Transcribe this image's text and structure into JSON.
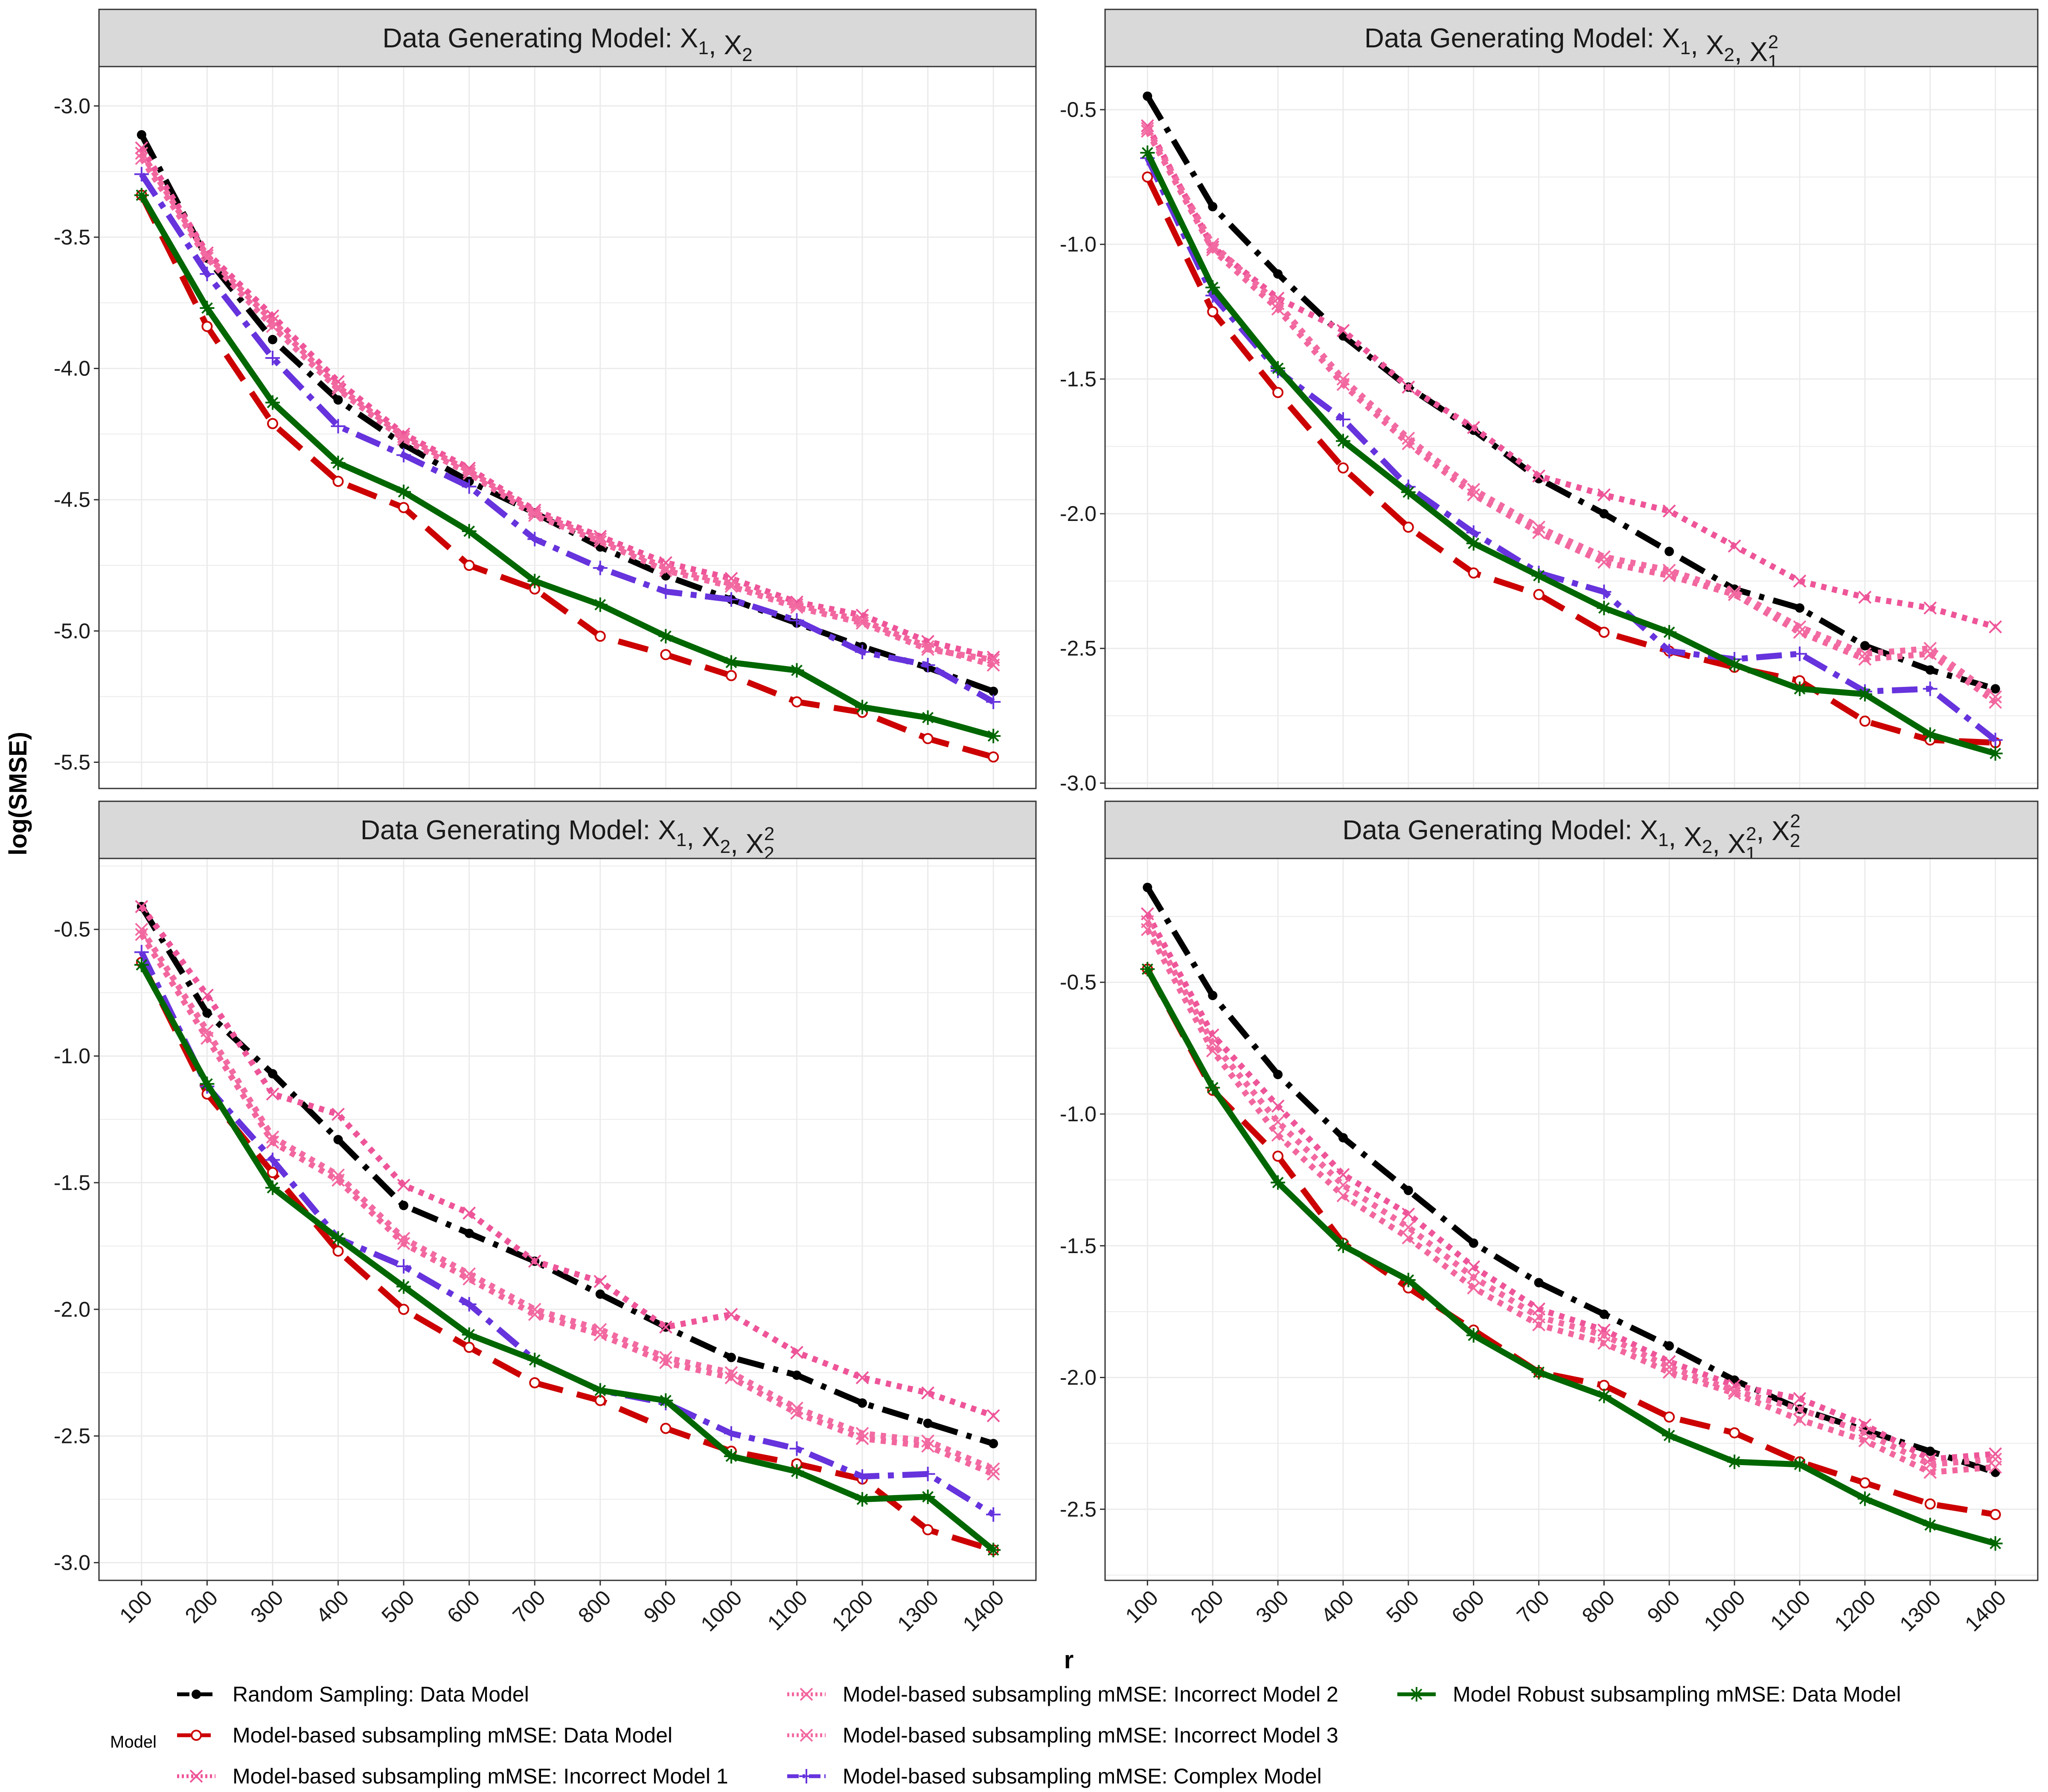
{
  "ylabel": "log(SMSE)",
  "xlabel": "r",
  "legend": {
    "title": "Model",
    "position": "bottom"
  },
  "chart_data": [
    {
      "type": "line",
      "panel_parts": [
        "Data Generating Model: X",
        {
          "sub": "1"
        },
        ", X",
        {
          "sub": "2"
        }
      ],
      "x": [
        100,
        200,
        300,
        400,
        500,
        600,
        700,
        800,
        900,
        1000,
        1100,
        1200,
        1300,
        1400
      ],
      "ylim": [
        -5.6,
        -2.85
      ],
      "yticks": [
        -3.0,
        -3.5,
        -4.0,
        -4.5,
        -5.0,
        -5.5
      ],
      "ytick_labels": [
        "-3.0",
        "-3.5",
        "-4.0",
        "-4.5",
        "-5.0",
        "-5.5"
      ],
      "series": [
        {
          "name": "Random Sampling: Data Model",
          "values": [
            -3.11,
            -3.58,
            -3.89,
            -4.12,
            -4.29,
            -4.43,
            -4.55,
            -4.68,
            -4.79,
            -4.88,
            -4.97,
            -5.06,
            -5.14,
            -5.23
          ]
        },
        {
          "name": "Model-based subsampling mMSE: Data Model",
          "values": [
            -3.34,
            -3.84,
            -4.21,
            -4.43,
            -4.53,
            -4.75,
            -4.84,
            -5.02,
            -5.09,
            -5.17,
            -5.27,
            -5.31,
            -5.41,
            -5.48
          ]
        },
        {
          "name": "Model-based subsampling mMSE: Incorrect Model 1",
          "values": [
            -3.16,
            -3.56,
            -3.8,
            -4.05,
            -4.25,
            -4.38,
            -4.54,
            -4.64,
            -4.74,
            -4.8,
            -4.89,
            -4.94,
            -5.04,
            -5.1
          ]
        },
        {
          "name": "Model-based subsampling mMSE: Incorrect Model 2",
          "values": [
            -3.18,
            -3.57,
            -3.82,
            -4.07,
            -4.26,
            -4.39,
            -4.55,
            -4.65,
            -4.76,
            -4.82,
            -4.9,
            -4.96,
            -5.06,
            -5.13
          ]
        },
        {
          "name": "Model-based subsampling mMSE: Incorrect Model 3",
          "values": [
            -3.2,
            -3.58,
            -3.84,
            -4.08,
            -4.27,
            -4.4,
            -4.56,
            -4.66,
            -4.77,
            -4.83,
            -4.91,
            -4.97,
            -5.07,
            -5.11
          ]
        },
        {
          "name": "Model-based subsampling mMSE: Complex Model",
          "values": [
            -3.26,
            -3.64,
            -3.96,
            -4.22,
            -4.33,
            -4.45,
            -4.65,
            -4.76,
            -4.85,
            -4.88,
            -4.96,
            -5.08,
            -5.13,
            -5.27
          ]
        },
        {
          "name": "Model Robust subsampling mMSE: Data Model",
          "values": [
            -3.34,
            -3.77,
            -4.13,
            -4.36,
            -4.47,
            -4.62,
            -4.81,
            -4.9,
            -5.02,
            -5.12,
            -5.15,
            -5.29,
            -5.33,
            -5.4
          ]
        }
      ]
    },
    {
      "type": "line",
      "panel_parts": [
        "Data Generating Model: X",
        {
          "sub": "1"
        },
        ", X",
        {
          "sub": "2"
        },
        ", X",
        {
          "sub": "1",
          "sup": "2"
        }
      ],
      "x": [
        100,
        200,
        300,
        400,
        500,
        600,
        700,
        800,
        900,
        1000,
        1100,
        1200,
        1300,
        1400
      ],
      "ylim": [
        -3.02,
        -0.34
      ],
      "yticks": [
        -0.5,
        -1.0,
        -1.5,
        -2.0,
        -2.5,
        -3.0
      ],
      "ytick_labels": [
        "-0.5",
        "-1.0",
        "-1.5",
        "-2.0",
        "-2.5",
        "-3.0"
      ],
      "series": [
        {
          "name": "Random Sampling: Data Model",
          "values": [
            -0.45,
            -0.86,
            -1.11,
            -1.34,
            -1.53,
            -1.69,
            -1.87,
            -2.0,
            -2.14,
            -2.28,
            -2.35,
            -2.49,
            -2.58,
            -2.65
          ]
        },
        {
          "name": "Model-based subsampling mMSE: Data Model",
          "values": [
            -0.75,
            -1.25,
            -1.55,
            -1.83,
            -2.05,
            -2.22,
            -2.3,
            -2.44,
            -2.51,
            -2.57,
            -2.62,
            -2.77,
            -2.84,
            -2.85
          ]
        },
        {
          "name": "Model-based subsampling mMSE: Incorrect Model 1",
          "values": [
            -0.56,
            -1.01,
            -1.2,
            -1.32,
            -1.53,
            -1.68,
            -1.86,
            -1.93,
            -1.99,
            -2.12,
            -2.25,
            -2.31,
            -2.35,
            -2.42
          ]
        },
        {
          "name": "Model-based subsampling mMSE: Incorrect Model 2",
          "values": [
            -0.58,
            -1.02,
            -1.24,
            -1.52,
            -1.74,
            -1.93,
            -2.07,
            -2.18,
            -2.23,
            -2.3,
            -2.44,
            -2.54,
            -2.52,
            -2.7
          ]
        },
        {
          "name": "Model-based subsampling mMSE: Incorrect Model 3",
          "values": [
            -0.57,
            -1.0,
            -1.22,
            -1.5,
            -1.72,
            -1.91,
            -2.05,
            -2.16,
            -2.21,
            -2.29,
            -2.42,
            -2.52,
            -2.5,
            -2.68
          ]
        },
        {
          "name": "Model-based subsampling mMSE: Complex Model",
          "values": [
            -0.68,
            -1.19,
            -1.47,
            -1.65,
            -1.9,
            -2.07,
            -2.22,
            -2.29,
            -2.51,
            -2.54,
            -2.52,
            -2.66,
            -2.65,
            -2.84
          ]
        },
        {
          "name": "Model Robust subsampling mMSE: Data Model",
          "values": [
            -0.66,
            -1.16,
            -1.46,
            -1.73,
            -1.92,
            -2.11,
            -2.23,
            -2.35,
            -2.44,
            -2.56,
            -2.65,
            -2.67,
            -2.82,
            -2.89
          ]
        }
      ]
    },
    {
      "type": "line",
      "panel_parts": [
        "Data Generating Model: X",
        {
          "sub": "1"
        },
        ", X",
        {
          "sub": "2"
        },
        ", X",
        {
          "sub": "2",
          "sup": "2"
        }
      ],
      "x": [
        100,
        200,
        300,
        400,
        500,
        600,
        700,
        800,
        900,
        1000,
        1100,
        1200,
        1300,
        1400
      ],
      "ylim": [
        -3.07,
        -0.22
      ],
      "yticks": [
        -0.5,
        -1.0,
        -1.5,
        -2.0,
        -2.5,
        -3.0
      ],
      "ytick_labels": [
        "-0.5",
        "-1.0",
        "-1.5",
        "-2.0",
        "-2.5",
        "-3.0"
      ],
      "series": [
        {
          "name": "Random Sampling: Data Model",
          "values": [
            -0.41,
            -0.83,
            -1.07,
            -1.33,
            -1.59,
            -1.7,
            -1.81,
            -1.94,
            -2.07,
            -2.19,
            -2.26,
            -2.37,
            -2.45,
            -2.53
          ]
        },
        {
          "name": "Model-based subsampling mMSE: Data Model",
          "values": [
            -0.63,
            -1.15,
            -1.46,
            -1.77,
            -2.0,
            -2.15,
            -2.29,
            -2.36,
            -2.47,
            -2.56,
            -2.61,
            -2.67,
            -2.87,
            -2.95
          ]
        },
        {
          "name": "Model-based subsampling mMSE: Incorrect Model 1",
          "values": [
            -0.41,
            -0.76,
            -1.15,
            -1.23,
            -1.51,
            -1.62,
            -1.81,
            -1.89,
            -2.07,
            -2.02,
            -2.17,
            -2.27,
            -2.33,
            -2.42
          ]
        },
        {
          "name": "Model-based subsampling mMSE: Incorrect Model 2",
          "values": [
            -0.52,
            -0.93,
            -1.34,
            -1.49,
            -1.74,
            -1.88,
            -2.02,
            -2.1,
            -2.21,
            -2.27,
            -2.41,
            -2.51,
            -2.54,
            -2.65
          ]
        },
        {
          "name": "Model-based subsampling mMSE: Incorrect Model 3",
          "values": [
            -0.5,
            -0.9,
            -1.32,
            -1.47,
            -1.72,
            -1.86,
            -2.0,
            -2.08,
            -2.19,
            -2.25,
            -2.39,
            -2.49,
            -2.52,
            -2.63
          ]
        },
        {
          "name": "Model-based subsampling mMSE: Complex Model",
          "values": [
            -0.59,
            -1.12,
            -1.41,
            -1.72,
            -1.83,
            -1.98,
            -2.2,
            -2.32,
            -2.37,
            -2.49,
            -2.55,
            -2.66,
            -2.65,
            -2.81
          ]
        },
        {
          "name": "Model Robust subsampling mMSE: Data Model",
          "values": [
            -0.64,
            -1.11,
            -1.52,
            -1.72,
            -1.91,
            -2.1,
            -2.2,
            -2.32,
            -2.36,
            -2.58,
            -2.64,
            -2.75,
            -2.74,
            -2.95
          ]
        }
      ]
    },
    {
      "type": "line",
      "panel_parts": [
        "Data Generating Model: X",
        {
          "sub": "1"
        },
        ", X",
        {
          "sub": "2"
        },
        ", X",
        {
          "sub": "1",
          "sup": "2"
        },
        ", X",
        {
          "sub": "2",
          "sup": "2"
        }
      ],
      "x": [
        100,
        200,
        300,
        400,
        500,
        600,
        700,
        800,
        900,
        1000,
        1100,
        1200,
        1300,
        1400
      ],
      "ylim": [
        -2.77,
        -0.03
      ],
      "yticks": [
        -0.5,
        -1.0,
        -1.5,
        -2.0,
        -2.5
      ],
      "ytick_labels": [
        "-0.5",
        "-1.0",
        "-1.5",
        "-2.0",
        "-2.5"
      ],
      "series": [
        {
          "name": "Random Sampling: Data Model",
          "values": [
            -0.14,
            -0.55,
            -0.85,
            -1.09,
            -1.29,
            -1.49,
            -1.64,
            -1.76,
            -1.88,
            -2.01,
            -2.12,
            -2.2,
            -2.28,
            -2.36
          ]
        },
        {
          "name": "Model-based subsampling mMSE: Data Model",
          "values": [
            -0.45,
            -0.91,
            -1.16,
            -1.49,
            -1.66,
            -1.82,
            -1.98,
            -2.03,
            -2.15,
            -2.21,
            -2.32,
            -2.4,
            -2.48,
            -2.52
          ]
        },
        {
          "name": "Model-based subsampling mMSE: Incorrect Model 1",
          "values": [
            -0.24,
            -0.7,
            -0.97,
            -1.23,
            -1.38,
            -1.58,
            -1.74,
            -1.82,
            -1.94,
            -2.03,
            -2.08,
            -2.18,
            -2.31,
            -2.29
          ]
        },
        {
          "name": "Model-based subsampling mMSE: Incorrect Model 2",
          "values": [
            -0.3,
            -0.76,
            -1.08,
            -1.31,
            -1.47,
            -1.66,
            -1.8,
            -1.87,
            -1.98,
            -2.06,
            -2.16,
            -2.24,
            -2.36,
            -2.34
          ]
        },
        {
          "name": "Model-based subsampling mMSE: Incorrect Model 3",
          "values": [
            -0.27,
            -0.73,
            -1.03,
            -1.27,
            -1.43,
            -1.62,
            -1.77,
            -1.84,
            -1.96,
            -2.05,
            -2.12,
            -2.21,
            -2.33,
            -2.31
          ]
        },
        {
          "name": "Model Robust subsampling mMSE: Data Model",
          "values": [
            -0.45,
            -0.9,
            -1.26,
            -1.5,
            -1.63,
            -1.84,
            -1.98,
            -2.07,
            -2.22,
            -2.32,
            -2.33,
            -2.46,
            -2.56,
            -2.63
          ]
        }
      ]
    }
  ],
  "series_styles": [
    {
      "name": "Random Sampling: Data Model",
      "color": "#000000",
      "dash": "64 22 12 22",
      "width": 14,
      "marker": "dot"
    },
    {
      "name": "Model-based subsampling mMSE: Data Model",
      "color": "#cc0000",
      "dash": "72 34",
      "width": 14,
      "marker": "circle"
    },
    {
      "name": "Model-based subsampling mMSE: Incorrect Model 1",
      "color": "#ee5599",
      "dash": "12 14",
      "width": 14,
      "marker": "x"
    },
    {
      "name": "Model-based subsampling mMSE: Incorrect Model 2",
      "color": "#f2669e",
      "dash": "12 14",
      "width": 14,
      "marker": "x"
    },
    {
      "name": "Model-based subsampling mMSE: Incorrect Model 3",
      "color": "#f26aa2",
      "dash": "12 14",
      "width": 14,
      "marker": "x"
    },
    {
      "name": "Model-based subsampling mMSE: Complex Model",
      "color": "#6633dd",
      "dash": "60 20 14 20",
      "width": 14,
      "marker": "plus"
    },
    {
      "name": "Model Robust subsampling mMSE: Data Model",
      "color": "#006600",
      "dash": "",
      "width": 14,
      "marker": "asterisk"
    }
  ]
}
